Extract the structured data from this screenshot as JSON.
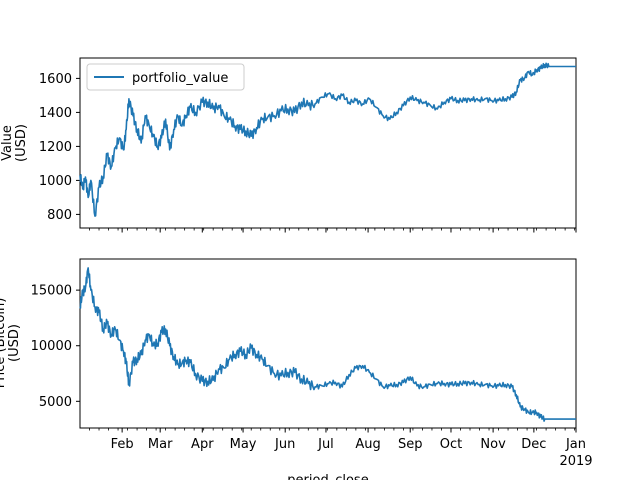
{
  "chart_data": [
    {
      "type": "line",
      "title": "",
      "xlabel": "",
      "ylabel_lines": [
        "Value",
        "(USD)"
      ],
      "ylim": [
        720,
        1720
      ],
      "yticks": [
        800,
        1000,
        1200,
        1400,
        1600
      ],
      "xlim": [
        "2018-01-01",
        "2019-01-01"
      ],
      "grid": false,
      "legend": "top-left",
      "series": [
        {
          "name": "portfolio_value",
          "color": "#1f77b4",
          "x": [
            "2018-01-01",
            "2018-01-03",
            "2018-01-05",
            "2018-01-07",
            "2018-01-09",
            "2018-01-12",
            "2018-01-15",
            "2018-01-18",
            "2018-01-21",
            "2018-01-24",
            "2018-01-27",
            "2018-01-30",
            "2018-02-02",
            "2018-02-04",
            "2018-02-06",
            "2018-02-09",
            "2018-02-12",
            "2018-02-15",
            "2018-02-18",
            "2018-02-21",
            "2018-02-24",
            "2018-02-27",
            "2018-03-02",
            "2018-03-05",
            "2018-03-08",
            "2018-03-11",
            "2018-03-14",
            "2018-03-17",
            "2018-03-20",
            "2018-03-23",
            "2018-03-27",
            "2018-04-01",
            "2018-04-05",
            "2018-04-09",
            "2018-04-13",
            "2018-04-17",
            "2018-04-21",
            "2018-04-25",
            "2018-04-29",
            "2018-05-03",
            "2018-05-07",
            "2018-05-11",
            "2018-05-15",
            "2018-05-19",
            "2018-05-24",
            "2018-05-29",
            "2018-06-03",
            "2018-06-08",
            "2018-06-13",
            "2018-06-18",
            "2018-06-23",
            "2018-06-28",
            "2018-07-03",
            "2018-07-08",
            "2018-07-13",
            "2018-07-18",
            "2018-07-23",
            "2018-07-28",
            "2018-08-02",
            "2018-08-07",
            "2018-08-12",
            "2018-08-17",
            "2018-08-22",
            "2018-08-27",
            "2018-09-01",
            "2018-09-06",
            "2018-09-11",
            "2018-09-16",
            "2018-09-21",
            "2018-09-26",
            "2018-10-01",
            "2018-10-06",
            "2018-10-11",
            "2018-10-16",
            "2018-10-21",
            "2018-10-26",
            "2018-10-31",
            "2018-11-05",
            "2018-11-10",
            "2018-11-15",
            "2018-11-18",
            "2018-11-21",
            "2018-11-24",
            "2018-11-27",
            "2018-11-30",
            "2018-12-03",
            "2018-12-06",
            "2018-12-09",
            "2018-12-12",
            "2018-12-16",
            "2018-12-20",
            "2018-12-25",
            "2019-01-01"
          ],
          "values": [
            1030,
            950,
            1020,
            900,
            1000,
            790,
            960,
            1020,
            1150,
            1080,
            1190,
            1250,
            1180,
            1300,
            1480,
            1380,
            1300,
            1220,
            1380,
            1320,
            1260,
            1200,
            1250,
            1360,
            1180,
            1300,
            1380,
            1320,
            1380,
            1430,
            1400,
            1460,
            1460,
            1420,
            1440,
            1380,
            1360,
            1320,
            1300,
            1290,
            1260,
            1310,
            1360,
            1370,
            1380,
            1410,
            1420,
            1400,
            1460,
            1440,
            1450,
            1490,
            1510,
            1480,
            1500,
            1460,
            1470,
            1450,
            1480,
            1430,
            1380,
            1360,
            1400,
            1440,
            1490,
            1470,
            1460,
            1440,
            1420,
            1460,
            1480,
            1470,
            1470,
            1480,
            1470,
            1480,
            1470,
            1470,
            1480,
            1490,
            1520,
            1590,
            1600,
            1640,
            1620,
            1650,
            1660,
            1680,
            1670,
            1670,
            1670,
            1670,
            1670
          ]
        }
      ]
    },
    {
      "type": "line",
      "title": "",
      "xlabel": "period_close",
      "ylabel_lines": [
        "Price (Bitcoin)",
        "(USD)"
      ],
      "ylim": [
        2600,
        17800
      ],
      "yticks": [
        5000,
        10000,
        15000
      ],
      "xlim": [
        "2018-01-01",
        "2019-01-01"
      ],
      "xtick_labels": [
        "Feb",
        "Mar",
        "Apr",
        "May",
        "Jun",
        "Jul",
        "Aug",
        "Sep",
        "Oct",
        "Nov",
        "Dec",
        "Jan"
      ],
      "xtick_sublabel": "2019",
      "grid": false,
      "series": [
        {
          "color": "#1f77b4",
          "x": [
            "2018-01-01",
            "2018-01-03",
            "2018-01-05",
            "2018-01-07",
            "2018-01-09",
            "2018-01-12",
            "2018-01-15",
            "2018-01-18",
            "2018-01-21",
            "2018-01-24",
            "2018-01-27",
            "2018-01-30",
            "2018-02-02",
            "2018-02-04",
            "2018-02-06",
            "2018-02-09",
            "2018-02-12",
            "2018-02-15",
            "2018-02-18",
            "2018-02-21",
            "2018-02-24",
            "2018-02-27",
            "2018-03-02",
            "2018-03-05",
            "2018-03-08",
            "2018-03-11",
            "2018-03-14",
            "2018-03-17",
            "2018-03-20",
            "2018-03-23",
            "2018-03-27",
            "2018-04-01",
            "2018-04-05",
            "2018-04-09",
            "2018-04-13",
            "2018-04-17",
            "2018-04-21",
            "2018-04-25",
            "2018-04-29",
            "2018-05-03",
            "2018-05-07",
            "2018-05-11",
            "2018-05-15",
            "2018-05-19",
            "2018-05-24",
            "2018-05-29",
            "2018-06-03",
            "2018-06-08",
            "2018-06-13",
            "2018-06-18",
            "2018-06-23",
            "2018-06-28",
            "2018-07-03",
            "2018-07-08",
            "2018-07-13",
            "2018-07-18",
            "2018-07-23",
            "2018-07-28",
            "2018-08-02",
            "2018-08-07",
            "2018-08-12",
            "2018-08-17",
            "2018-08-22",
            "2018-08-27",
            "2018-09-01",
            "2018-09-06",
            "2018-09-11",
            "2018-09-16",
            "2018-09-21",
            "2018-09-26",
            "2018-10-01",
            "2018-10-06",
            "2018-10-11",
            "2018-10-16",
            "2018-10-21",
            "2018-10-26",
            "2018-10-31",
            "2018-11-05",
            "2018-11-10",
            "2018-11-15",
            "2018-11-18",
            "2018-11-21",
            "2018-11-24",
            "2018-11-27",
            "2018-11-30",
            "2018-12-03",
            "2018-12-06",
            "2018-12-09",
            "2018-12-12",
            "2018-12-16",
            "2018-12-20",
            "2018-12-25",
            "2019-01-01"
          ],
          "values": [
            13500,
            14800,
            15200,
            17000,
            15000,
            13500,
            13000,
            11500,
            12000,
            11000,
            11500,
            10500,
            9500,
            8500,
            6500,
            8500,
            8800,
            9200,
            10500,
            11000,
            10000,
            10200,
            11200,
            11500,
            10000,
            9000,
            8300,
            8400,
            8700,
            8500,
            7500,
            6800,
            6800,
            6900,
            7900,
            8000,
            8800,
            9200,
            9500,
            9200,
            9800,
            9200,
            8800,
            8200,
            7500,
            7300,
            7600,
            7600,
            7000,
            6600,
            6300,
            6400,
            6600,
            6700,
            6300,
            7400,
            8000,
            8200,
            7600,
            7000,
            6300,
            6400,
            6500,
            6700,
            7200,
            6400,
            6300,
            6500,
            6600,
            6600,
            6500,
            6600,
            6600,
            6700,
            6500,
            6500,
            6400,
            6400,
            6500,
            6300,
            5600,
            4500,
            4300,
            4000,
            4000,
            4000,
            3600,
            3400,
            3400,
            3400,
            3400,
            3400,
            3400
          ]
        }
      ]
    }
  ]
}
